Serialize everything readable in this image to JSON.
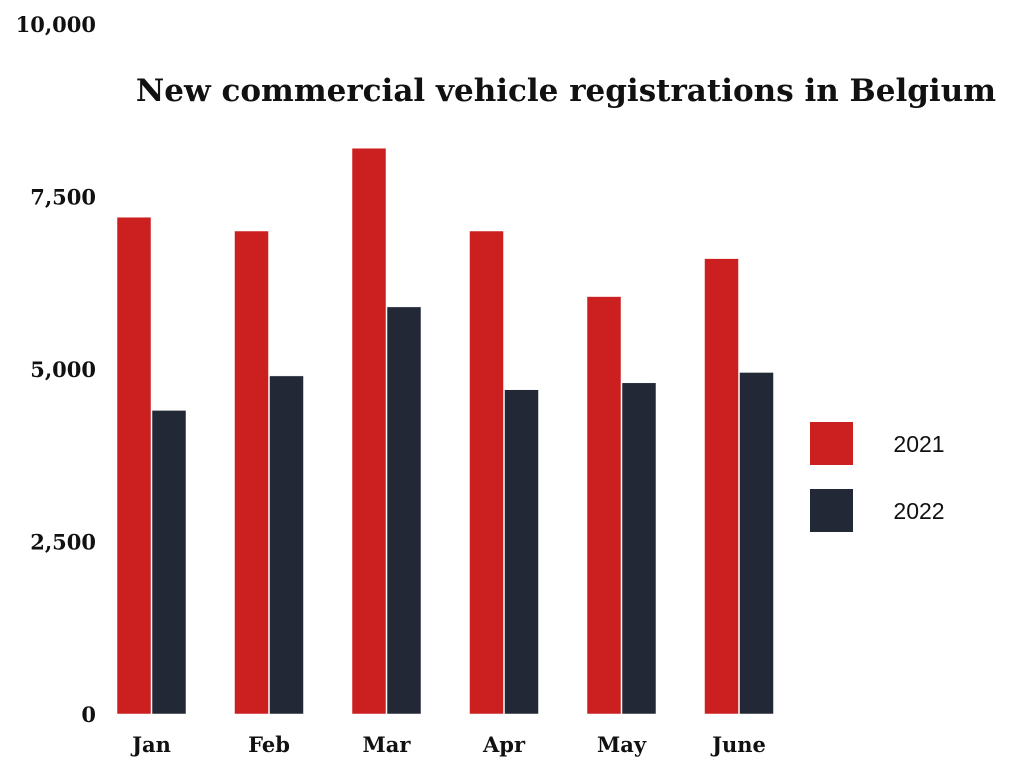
{
  "chart_data": {
    "type": "bar",
    "title": "New commercial vehicle registrations in Belgium",
    "xlabel": "",
    "ylabel": "",
    "categories": [
      "Jan",
      "Feb",
      "Mar",
      "Apr",
      "May",
      "June"
    ],
    "series": [
      {
        "name": "2021",
        "color": "#cc1f1f",
        "values": [
          7200,
          7000,
          8200,
          7000,
          6050,
          6600
        ]
      },
      {
        "name": "2022",
        "color": "#222836",
        "values": [
          4400,
          4900,
          5900,
          4700,
          4800,
          4950
        ]
      }
    ],
    "ylim": [
      0,
      10000
    ],
    "yticks": [
      "0",
      "2,500",
      "5,000",
      "7,500",
      "10,000"
    ],
    "ytick_values": [
      0,
      2500,
      5000,
      7500,
      10000
    ],
    "legend_position": "right",
    "grid": false
  }
}
